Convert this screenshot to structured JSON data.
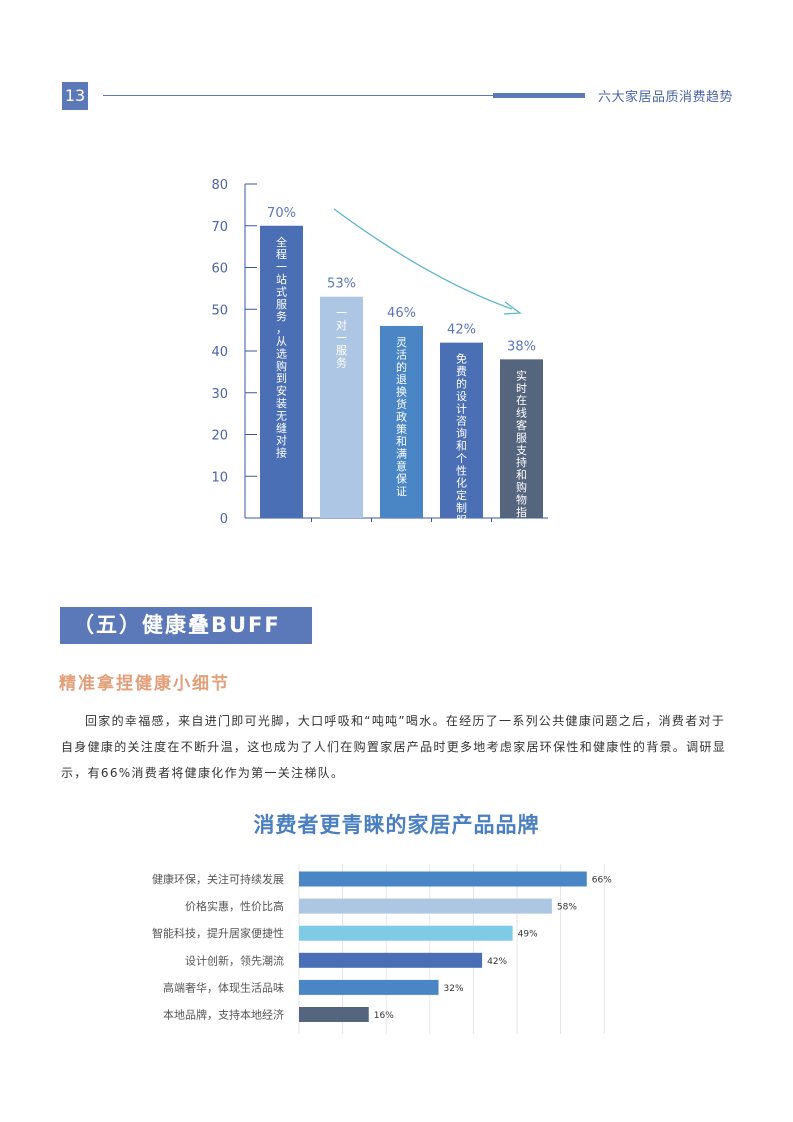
{
  "header": {
    "page_number": "13",
    "title": "六大家居品质消费趋势"
  },
  "chart_data": [
    {
      "type": "bar",
      "categories": [
        "全程一站式服务，从选购到安装无缝对接",
        "一对一服务",
        "灵活的退换货政策和满意保证",
        "免费的设计咨询和个性化定制服务",
        "实时在线客服支持和购物指南"
      ],
      "values": [
        70,
        53,
        46,
        42,
        38
      ],
      "data_labels": [
        "70%",
        "53%",
        "46%",
        "42%",
        "38%"
      ],
      "ylim": [
        0,
        80
      ],
      "yticks": [
        0,
        10,
        20,
        30,
        40,
        50,
        60,
        70,
        80
      ],
      "colors": [
        "#4a6fb5",
        "#adc6e3",
        "#4a86c6",
        "#4a6fb5",
        "#55657e"
      ],
      "annotation": "decreasing-trend-arrow",
      "grid": false
    },
    {
      "type": "bar",
      "orientation": "horizontal",
      "title": "消费者更青睐的家居产品品牌",
      "categories": [
        "健康环保，关注可持续发展",
        "价格实惠，性价比高",
        "智能科技，提升居家便捷性",
        "设计创新，领先潮流",
        "高端奢华，体现生活品味",
        "本地品牌，支持本地经济"
      ],
      "values": [
        66,
        58,
        49,
        42,
        32,
        16
      ],
      "data_labels": [
        "66%",
        "58%",
        "49%",
        "42%",
        "32%",
        "16%"
      ],
      "xlim": [
        0,
        70
      ],
      "colors": [
        "#4a86c6",
        "#adc6e3",
        "#7ecbe6",
        "#4a6fb5",
        "#4a86c6",
        "#55657e"
      ],
      "grid": true
    }
  ],
  "section": {
    "title": "（五）健康叠BUFF",
    "subtitle": "精准拿捏健康小细节",
    "paragraph": "回家的幸福感，来自进门即可光脚，大口呼吸和“吨吨”喝水。在经历了一系列公共健康问题之后，消费者对于自身健康的关注度在不断升温，这也成为了人们在购置家居产品时更多地考虑家居环保性和健康性的背景。调研显示，有66%消费者将健康化作为第一关注梯队。"
  }
}
